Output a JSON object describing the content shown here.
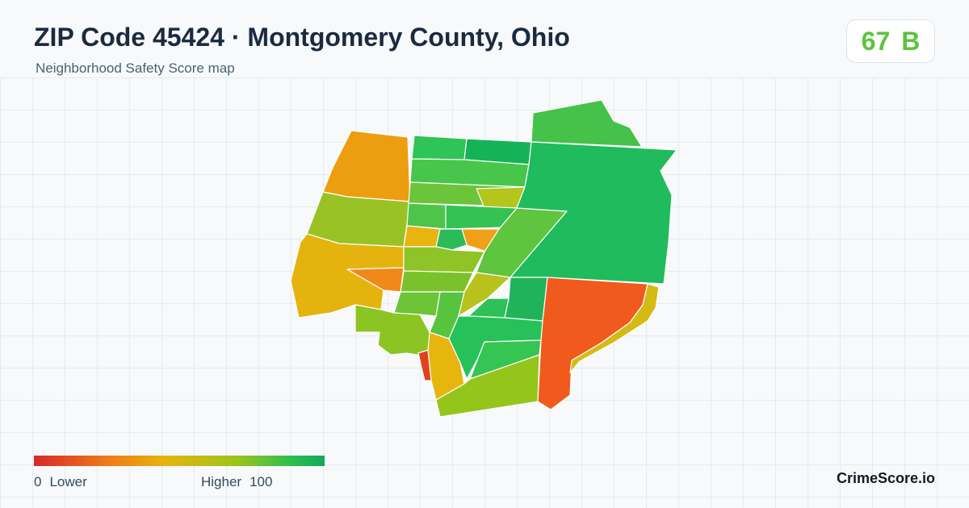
{
  "header": {
    "title": "ZIP Code 45424 · Montgomery County, Ohio",
    "subtitle": "Neighborhood Safety Score map"
  },
  "score": {
    "value": "67",
    "grade": "B",
    "color": "#5cc43a"
  },
  "legend": {
    "min_value": "0",
    "min_label": "Lower",
    "max_label": "Higher",
    "max_value": "100",
    "colors": [
      "#d7282a",
      "#ef7a1a",
      "#e6b40e",
      "#9cc41a",
      "#2fbf4f",
      "#15a85a"
    ]
  },
  "brand": "CrimeScore.io",
  "map": {
    "regions": [
      {
        "name": "northwest",
        "color": "#ec9d10"
      },
      {
        "name": "west-upper",
        "color": "#99c324"
      },
      {
        "name": "west-lower",
        "color": "#e5b30d"
      },
      {
        "name": "west-pocket",
        "color": "#f0891a"
      },
      {
        "name": "southwest",
        "color": "#8cc423"
      },
      {
        "name": "southwest-point",
        "color": "#e0421e"
      },
      {
        "name": "south-strip",
        "color": "#e6b60e"
      },
      {
        "name": "north-top-1",
        "color": "#2ec456"
      },
      {
        "name": "north-top-2",
        "color": "#16b258"
      },
      {
        "name": "north-row-2",
        "color": "#48c64b"
      },
      {
        "name": "north-row-3",
        "color": "#6bc43a"
      },
      {
        "name": "north-row-3-east",
        "color": "#b4c51b"
      },
      {
        "name": "center-north",
        "color": "#4ec54a"
      },
      {
        "name": "center-north-2",
        "color": "#35c255"
      },
      {
        "name": "center-yellow",
        "color": "#e8b40f"
      },
      {
        "name": "center-orange",
        "color": "#efa016"
      },
      {
        "name": "center-small",
        "color": "#2dbb5a"
      },
      {
        "name": "center-band",
        "color": "#8fc426"
      },
      {
        "name": "center-band-2",
        "color": "#7ac22c"
      },
      {
        "name": "diagonal-strip",
        "color": "#5fc43e"
      },
      {
        "name": "diagonal-strip-lower",
        "color": "#b7c31c"
      },
      {
        "name": "center-left-low",
        "color": "#6dc437"
      },
      {
        "name": "center-left-low-2",
        "color": "#56c43f"
      },
      {
        "name": "east-large",
        "color": "#1fbb5c"
      },
      {
        "name": "north-east",
        "color": "#46c24a"
      },
      {
        "name": "east-inner",
        "color": "#21b35a"
      },
      {
        "name": "east-inner-2",
        "color": "#2dc157"
      },
      {
        "name": "south-center",
        "color": "#27c15a"
      },
      {
        "name": "south-center-2",
        "color": "#36c452"
      },
      {
        "name": "south-band",
        "color": "#94c51a"
      },
      {
        "name": "southeast-large",
        "color": "#f05a1c"
      },
      {
        "name": "southeast-strip",
        "color": "#d4bb14"
      }
    ]
  }
}
